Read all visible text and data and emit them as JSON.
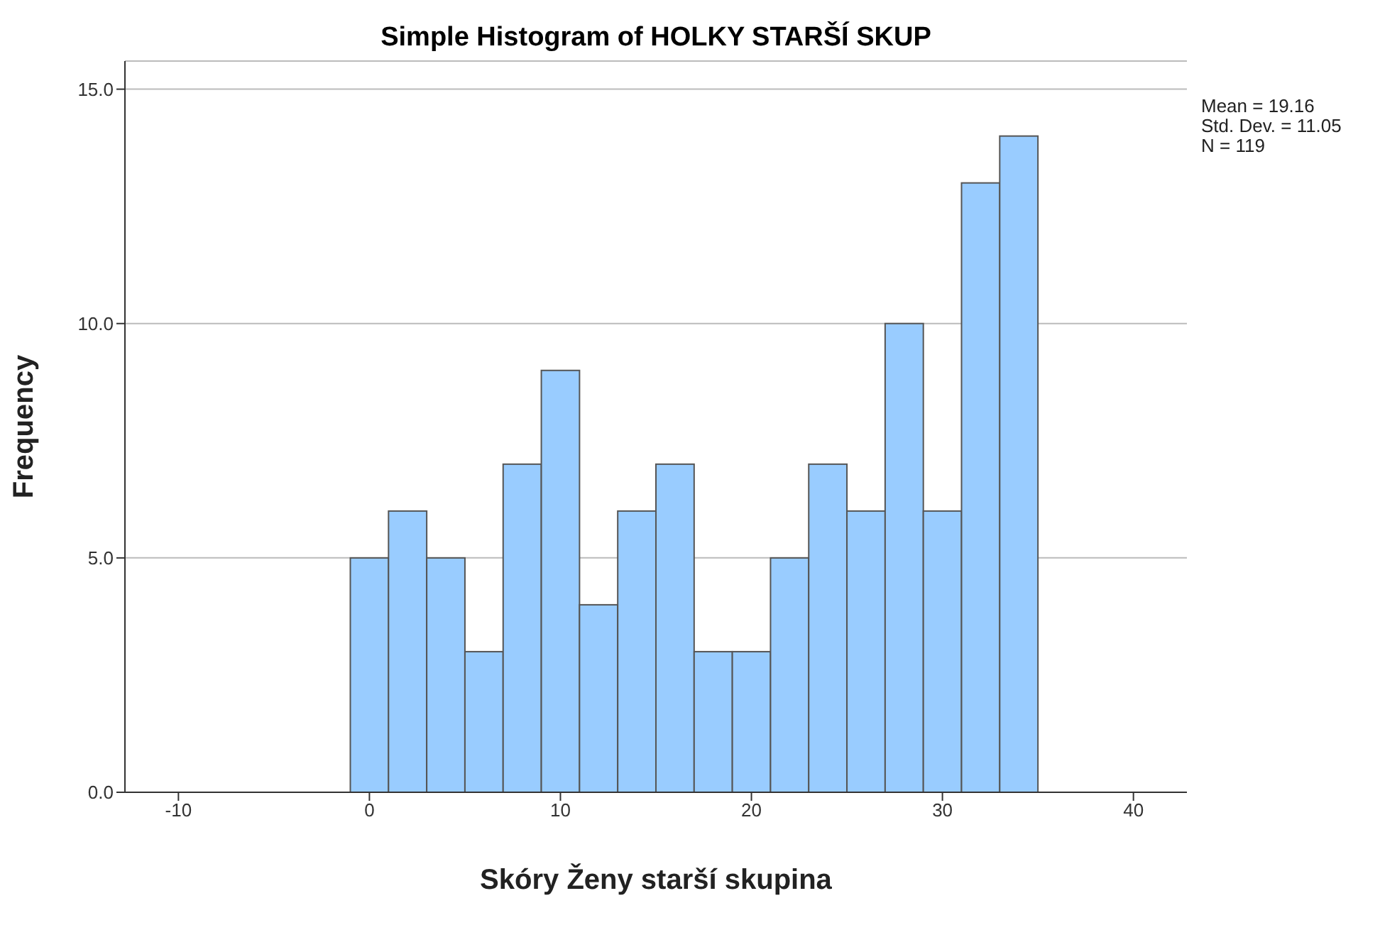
{
  "chart_data": {
    "type": "histogram",
    "title": "Simple Histogram of HOLKY STARŠÍ SKUP",
    "xlabel": "Skóry Ženy starší skupina",
    "ylabel": "Frequency",
    "bins": [
      -1,
      1,
      3,
      5,
      7,
      9,
      11,
      13,
      15,
      17,
      19,
      21,
      23,
      25,
      27,
      29,
      31,
      33,
      35
    ],
    "values": [
      5,
      6,
      5,
      3,
      7,
      9,
      4,
      6,
      7,
      3,
      3,
      5,
      7,
      6,
      10,
      6,
      13,
      14
    ],
    "color": "#99ccff",
    "xlim": [
      -12.8,
      42.8
    ],
    "xticks": [
      -10,
      0,
      10,
      20,
      30,
      40
    ],
    "ylim": [
      0,
      15.6
    ],
    "yticks": [
      {
        "value": 0,
        "label": "0.0"
      },
      {
        "value": 5,
        "label": "5.0"
      },
      {
        "value": 10,
        "label": "10.0"
      },
      {
        "value": 15,
        "label": "15.0"
      }
    ],
    "grid": "y",
    "annotations": [
      "Mean = 19.16",
      "Std. Dev. = 11.05",
      "N = 119"
    ]
  }
}
